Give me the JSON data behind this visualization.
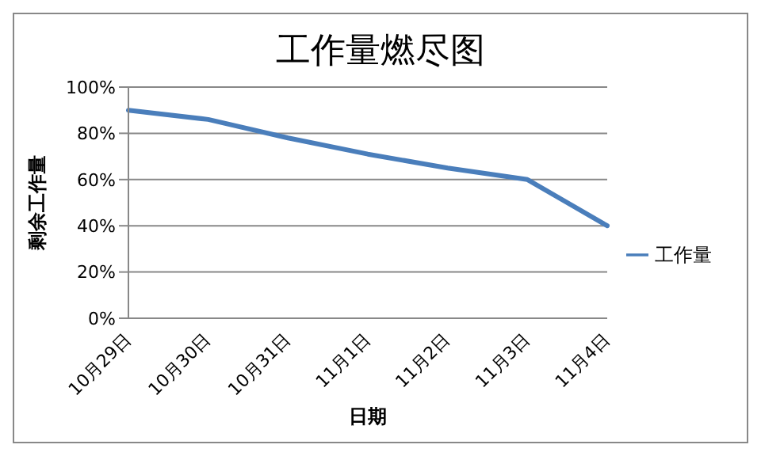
{
  "chart_data": {
    "type": "line",
    "title": "工作量燃尽图",
    "xlabel": "日期",
    "ylabel": "剩余工作量",
    "categories": [
      "10月29日",
      "10月30日",
      "10月31日",
      "11月1日",
      "11月2日",
      "11月3日",
      "11月4日"
    ],
    "series": [
      {
        "name": "工作量",
        "color": "#4a7ebb",
        "values": [
          90,
          86,
          78,
          71,
          65,
          60,
          40
        ]
      }
    ],
    "ylim": [
      0,
      100
    ],
    "yticks": [
      {
        "value": 0,
        "label": "0%"
      },
      {
        "value": 20,
        "label": "20%"
      },
      {
        "value": 40,
        "label": "40%"
      },
      {
        "value": 60,
        "label": "60%"
      },
      {
        "value": 80,
        "label": "80%"
      },
      {
        "value": 100,
        "label": "100%"
      }
    ],
    "grid": "y",
    "legend": "right",
    "marker": "none",
    "line_style": "solid"
  }
}
